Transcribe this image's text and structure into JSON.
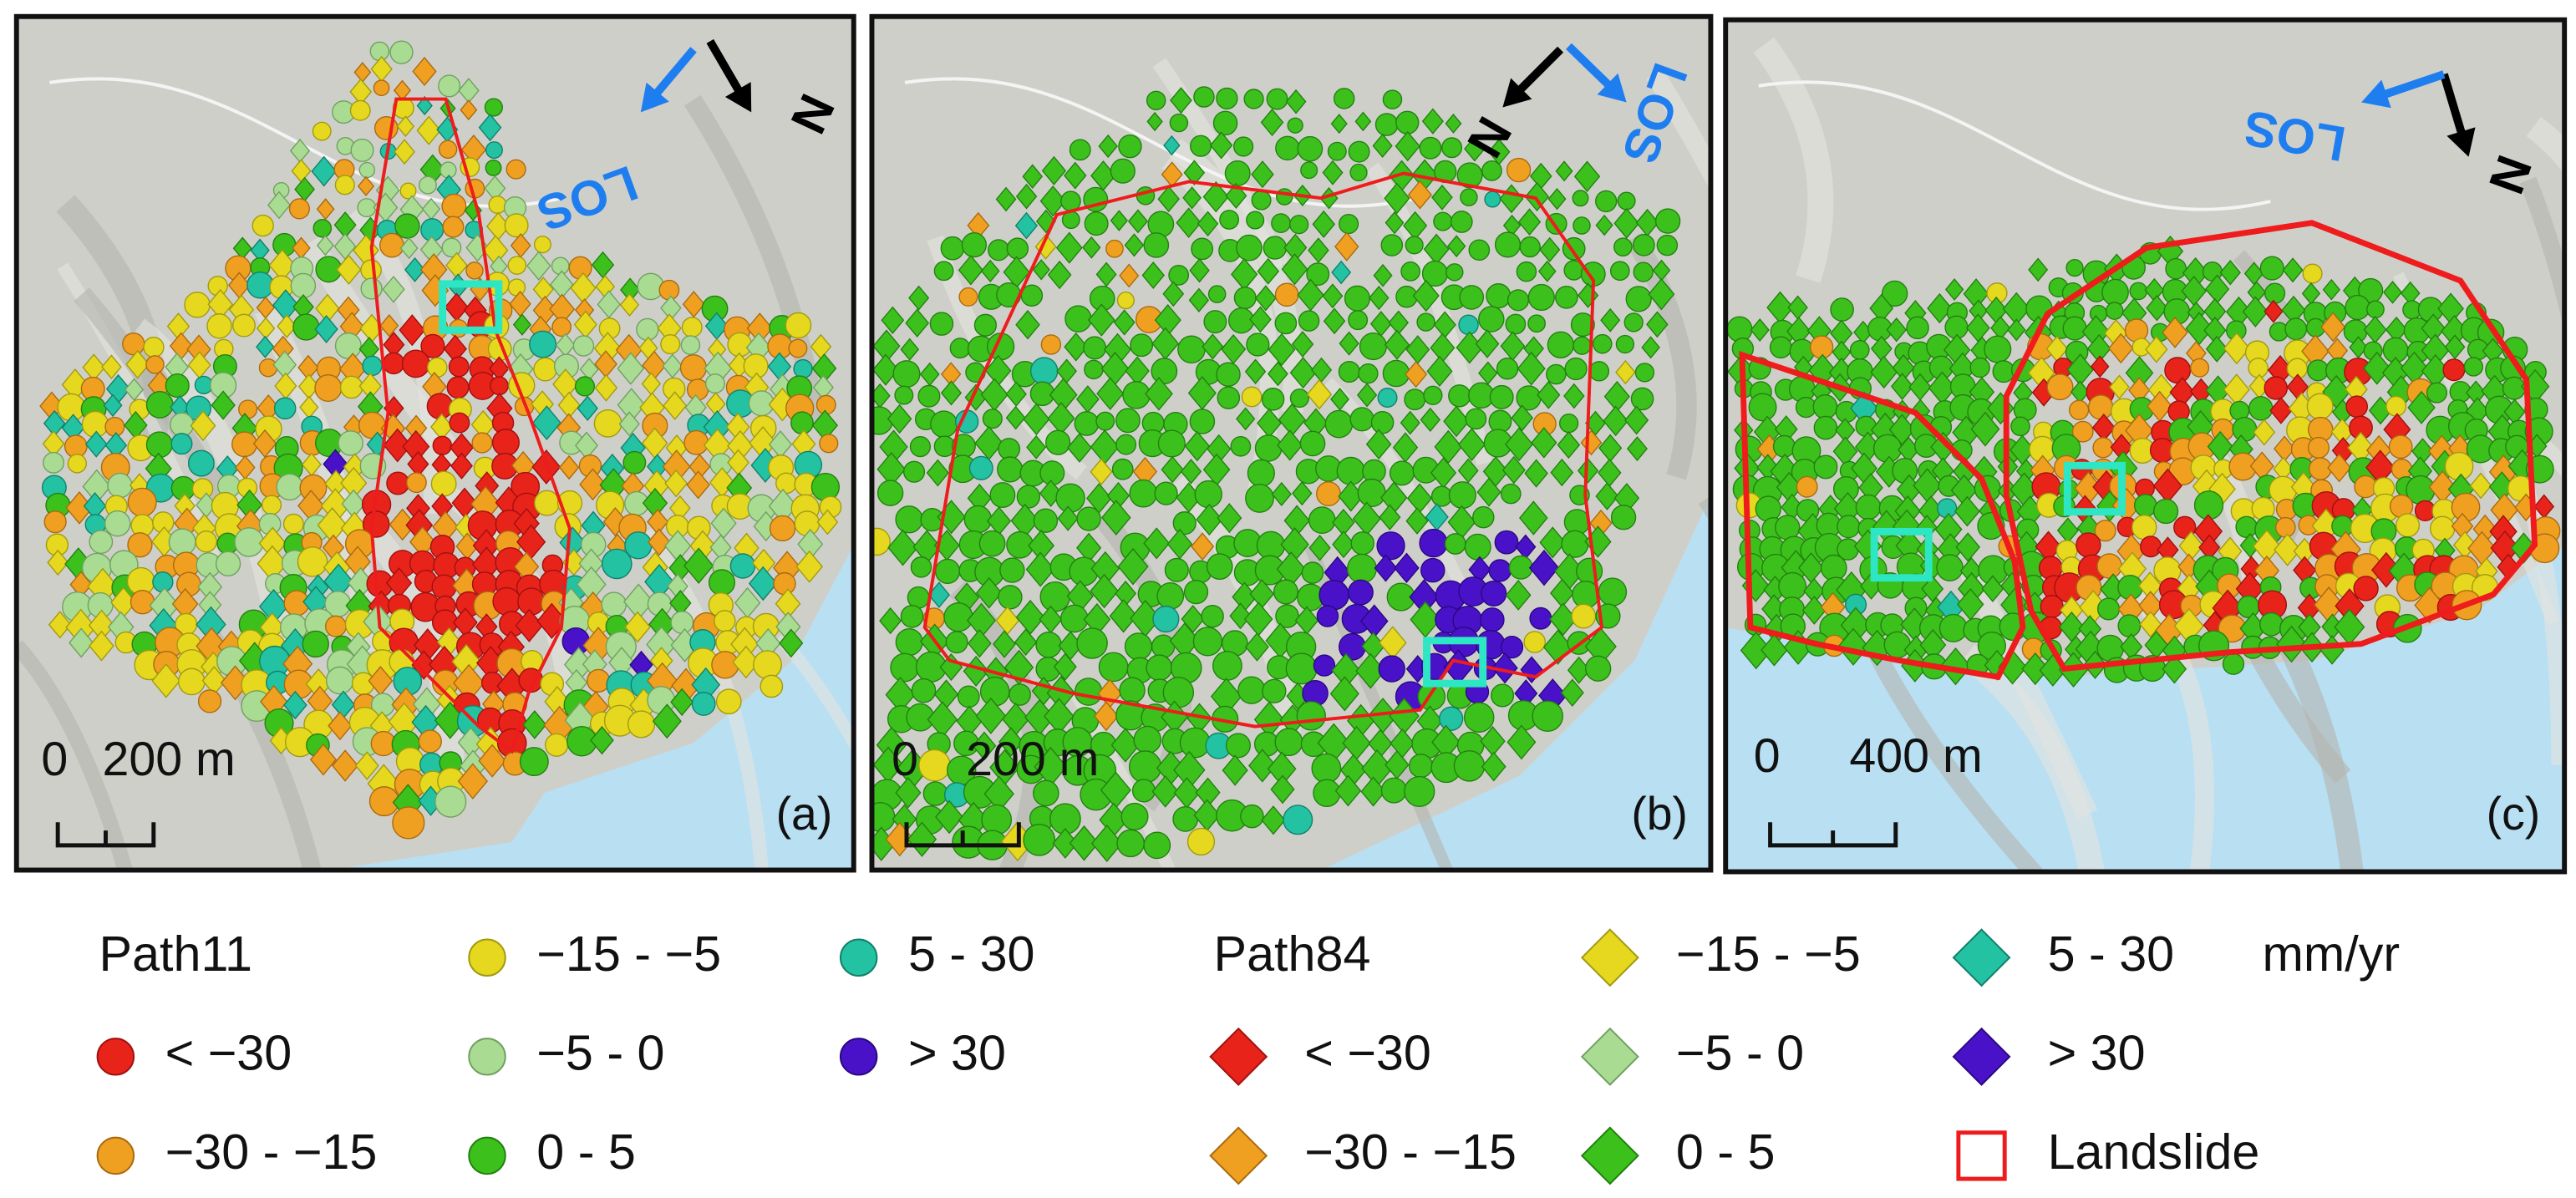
{
  "panels": [
    {
      "label": "(a)",
      "scale_start": "0",
      "scale_end": "200 m",
      "los": "LOS",
      "north": "N"
    },
    {
      "label": "(b)",
      "scale_start": "0",
      "scale_end": "200 m",
      "los": "LOS",
      "north": "N"
    },
    {
      "label": "(c)",
      "scale_start": "0",
      "scale_end": "400 m",
      "los": "LOS",
      "north": "N"
    }
  ],
  "legend": {
    "path11": {
      "title": "Path11",
      "classes": [
        "< −30",
        "−30 - −15",
        "−15 - −5",
        "−5 - 0",
        "0 - 5",
        "5 - 30",
        "> 30"
      ]
    },
    "path84": {
      "title": "Path84",
      "classes": [
        "< −30",
        "−30 - −15",
        "−15 - −5",
        "−5 - 0",
        "0 - 5",
        "5 - 30",
        "> 30"
      ]
    },
    "unit": "mm/yr",
    "landslide": "Landslide"
  }
}
